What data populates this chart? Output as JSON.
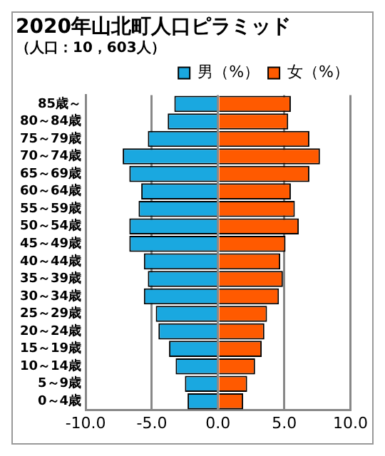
{
  "chart_data": {
    "type": "bar",
    "orientation": "horizontal",
    "stacked": true,
    "title": "2020年山北町人口ピラミッド",
    "subtitle": "（人口：10，603人）",
    "categories": [
      "85歳～",
      "80～84歳",
      "75～79歳",
      "70～74歳",
      "65～69歳",
      "60～64歳",
      "55～59歳",
      "50～54歳",
      "45～49歳",
      "40～44歳",
      "35～39歳",
      "30～34歳",
      "25～29歳",
      "20～24歳",
      "15～19歳",
      "10～14歳",
      "5～9歳",
      "0～4歳"
    ],
    "series": [
      {
        "name": "男（%）",
        "color": "#1aa8e0",
        "values": [
          -3.3,
          -3.8,
          -5.3,
          -7.2,
          -6.7,
          -5.8,
          -6.0,
          -6.7,
          -6.7,
          -5.6,
          -5.3,
          -5.6,
          -4.7,
          -4.5,
          -3.7,
          -3.2,
          -2.5,
          -2.3
        ]
      },
      {
        "name": "女（%）",
        "color": "#ff5a00",
        "values": [
          5.5,
          5.3,
          6.9,
          7.7,
          6.9,
          5.5,
          5.8,
          6.1,
          5.1,
          4.7,
          4.9,
          4.6,
          3.7,
          3.5,
          3.3,
          2.8,
          2.2,
          1.9
        ]
      }
    ],
    "xlim": [
      -10,
      10
    ],
    "xticks": [
      {
        "value": -10,
        "label": "-10.0"
      },
      {
        "value": -5,
        "label": "-5.0"
      },
      {
        "value": 0,
        "label": "0.0"
      },
      {
        "value": 5,
        "label": "5.0"
      },
      {
        "value": 10,
        "label": "10.0"
      }
    ],
    "grid": "x",
    "legend": "top right"
  }
}
